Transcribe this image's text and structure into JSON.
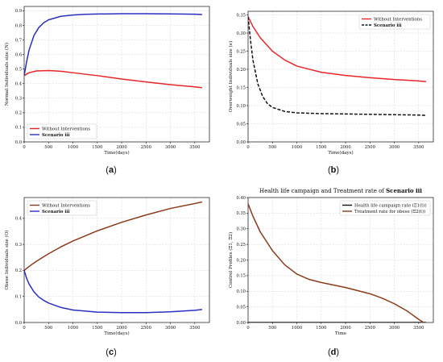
{
  "chart_data": [
    {
      "type": "line",
      "caption": "(a)",
      "xlabel": "Time(days)",
      "ylabel": "Normal Individuals size (N)",
      "xlim": [
        0,
        3800
      ],
      "ylim": [
        0,
        0.93
      ],
      "xticks": [
        0,
        500,
        1000,
        1500,
        2000,
        2500,
        3000,
        3500
      ],
      "yticks": [
        0.0,
        0.1,
        0.2,
        0.3,
        0.4,
        0.5,
        0.6,
        0.7,
        0.8,
        0.9
      ],
      "legend_position": "bottom-left",
      "series": [
        {
          "name": "Without Interventions",
          "color": "#e8262a",
          "dash": "solid",
          "x": [
            0,
            100,
            250,
            500,
            750,
            1000,
            1500,
            2000,
            2500,
            3000,
            3500,
            3650
          ],
          "y": [
            0.455,
            0.475,
            0.487,
            0.49,
            0.485,
            0.475,
            0.455,
            0.432,
            0.412,
            0.393,
            0.378,
            0.372
          ]
        },
        {
          "name": "Scenario iii",
          "color": "#2b2fbf",
          "dash": "solid",
          "x": [
            0,
            50,
            100,
            200,
            300,
            400,
            500,
            750,
            1000,
            1250,
            1500,
            2000,
            2500,
            3000,
            3500,
            3650
          ],
          "y": [
            0.455,
            0.55,
            0.63,
            0.73,
            0.785,
            0.818,
            0.838,
            0.862,
            0.871,
            0.876,
            0.878,
            0.88,
            0.88,
            0.879,
            0.877,
            0.875
          ]
        }
      ]
    },
    {
      "type": "line",
      "caption": "(b)",
      "xlabel": "Time(days)",
      "ylabel": "Overweight Individuals size (e)",
      "xlim": [
        0,
        3800
      ],
      "ylim": [
        0,
        0.36
      ],
      "xticks": [
        0,
        500,
        1000,
        1500,
        2000,
        2500,
        3000,
        3500
      ],
      "yticks": [
        0.0,
        0.05,
        0.1,
        0.15,
        0.2,
        0.25,
        0.3,
        0.35
      ],
      "legend_position": "top-right",
      "series": [
        {
          "name": "Without Interventions",
          "color": "#e8262a",
          "dash": "solid",
          "x": [
            0,
            100,
            250,
            500,
            750,
            1000,
            1500,
            2000,
            2500,
            3000,
            3500,
            3650
          ],
          "y": [
            0.345,
            0.318,
            0.287,
            0.25,
            0.226,
            0.209,
            0.192,
            0.183,
            0.177,
            0.172,
            0.168,
            0.166
          ]
        },
        {
          "name": "Scenario iii",
          "color": "#111111",
          "dash": "dashed",
          "x": [
            0,
            50,
            100,
            200,
            300,
            400,
            500,
            750,
            1000,
            1500,
            2000,
            2500,
            3000,
            3500,
            3650
          ],
          "y": [
            0.345,
            0.28,
            0.225,
            0.16,
            0.125,
            0.105,
            0.095,
            0.084,
            0.08,
            0.078,
            0.077,
            0.076,
            0.075,
            0.074,
            0.073
          ]
        }
      ]
    },
    {
      "type": "line",
      "caption": "(c)",
      "xlabel": "Time(days)",
      "ylabel": "Obese Individuals size (O)",
      "xlim": [
        0,
        3800
      ],
      "ylim": [
        0,
        0.48
      ],
      "xticks": [
        0,
        500,
        1000,
        1500,
        2000,
        2500,
        3000,
        3500
      ],
      "yticks": [
        0.0,
        0.1,
        0.2,
        0.3,
        0.4
      ],
      "legend_position": "top-left",
      "series": [
        {
          "name": "Without Interventions",
          "color": "#8b3a1a",
          "dash": "solid",
          "x": [
            0,
            100,
            250,
            500,
            750,
            1000,
            1500,
            2000,
            2500,
            3000,
            3500,
            3650
          ],
          "y": [
            0.2,
            0.215,
            0.235,
            0.264,
            0.29,
            0.313,
            0.352,
            0.385,
            0.413,
            0.438,
            0.457,
            0.463
          ]
        },
        {
          "name": "Scenario iii",
          "color": "#2b2fbf",
          "dash": "solid",
          "x": [
            0,
            50,
            100,
            200,
            300,
            400,
            500,
            750,
            1000,
            1500,
            2000,
            2500,
            3000,
            3500,
            3650
          ],
          "y": [
            0.2,
            0.17,
            0.148,
            0.118,
            0.098,
            0.085,
            0.075,
            0.058,
            0.048,
            0.04,
            0.038,
            0.038,
            0.041,
            0.047,
            0.05
          ]
        }
      ]
    },
    {
      "type": "line",
      "caption": "(d)",
      "title_pre": "Health life campaign and Treatment rate of",
      "title_bold": "Scenario iii",
      "xlabel": "Time",
      "ylabel": "Control Profiles (Ξ1, Ξ2)",
      "xlim": [
        0,
        3800
      ],
      "ylim": [
        0,
        0.4
      ],
      "xticks": [
        0,
        500,
        1000,
        1500,
        2000,
        2500,
        3000,
        3500
      ],
      "yticks": [
        0.0,
        0.05,
        0.1,
        0.15,
        0.2,
        0.25,
        0.3,
        0.35,
        0.4
      ],
      "legend_position": "top-right",
      "series": [
        {
          "name": "Health life campaign rate (Ξ1(t))",
          "color": "#111111",
          "dash": "solid",
          "x": [
            0,
            1000,
            2000,
            3000,
            3650
          ],
          "y": [
            0.0,
            0.0,
            0.0,
            0.0,
            0.0
          ]
        },
        {
          "name": "Treatment rate for obese (Ξ2(t))",
          "color": "#8b3a1a",
          "dash": "solid",
          "x": [
            0,
            100,
            250,
            500,
            750,
            1000,
            1250,
            1500,
            2000,
            2500,
            2750,
            3000,
            3250,
            3500,
            3600
          ],
          "y": [
            0.38,
            0.34,
            0.29,
            0.23,
            0.185,
            0.155,
            0.138,
            0.128,
            0.112,
            0.092,
            0.078,
            0.06,
            0.038,
            0.01,
            0.0
          ]
        }
      ]
    }
  ]
}
